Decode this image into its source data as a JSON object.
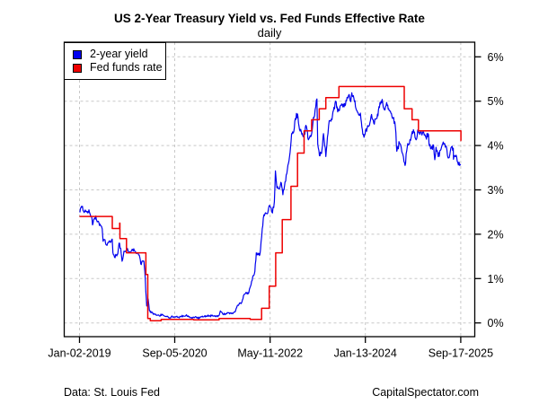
{
  "header": {
    "title": "US 2-Year Treasury Yield vs. Fed Funds Effective Rate",
    "subtitle": "daily"
  },
  "footer": {
    "source": "Data: St. Louis Fed",
    "site": "CapitalSpectator.com"
  },
  "legend": {
    "items": [
      {
        "label": "2-year yield",
        "color": "#0000ee"
      },
      {
        "label": "Fed funds rate",
        "color": "#ee0000"
      }
    ]
  },
  "chart_data": {
    "type": "line",
    "title": "US 2-Year Treasury Yield vs. Fed Funds Effective Rate",
    "subtitle": "daily",
    "grid": true,
    "grid_color": "#c8c8c8",
    "axis_color": "#000000",
    "legend_position": "top-left",
    "x_axis": {
      "xlim": [
        "2018-09-26",
        "2025-12-16"
      ],
      "ticks": [
        "2019-01-02",
        "2020-09-05",
        "2022-05-11",
        "2024-01-13",
        "2025-09-17"
      ],
      "tick_labels": [
        "Jan-02-2019",
        "Sep-05-2020",
        "May-11-2022",
        "Jan-13-2024",
        "Sep-17-2025"
      ],
      "data_end": "2025-09-19"
    },
    "y_axis": {
      "side": "right",
      "ylim": [
        -0.31,
        6.33
      ],
      "ticks": [
        0,
        1,
        2,
        3,
        4,
        5,
        6
      ],
      "tick_labels": [
        "0%",
        "1%",
        "2%",
        "3%",
        "4%",
        "5%",
        "6%"
      ],
      "unit": "percent"
    },
    "series": [
      {
        "name": "2-year yield",
        "color": "#0000ee",
        "style": "noisy-line",
        "points": [
          [
            "2019-01-02",
            2.5
          ],
          [
            "2019-01-08",
            2.58
          ],
          [
            "2019-01-18",
            2.61
          ],
          [
            "2019-01-28",
            2.52
          ],
          [
            "2019-02-05",
            2.52
          ],
          [
            "2019-02-15",
            2.52
          ],
          [
            "2019-02-25",
            2.48
          ],
          [
            "2019-03-04",
            2.55
          ],
          [
            "2019-03-12",
            2.45
          ],
          [
            "2019-03-20",
            2.4
          ],
          [
            "2019-03-27",
            2.21
          ],
          [
            "2019-04-05",
            2.34
          ],
          [
            "2019-04-17",
            2.41
          ],
          [
            "2019-04-26",
            2.28
          ],
          [
            "2019-05-07",
            2.26
          ],
          [
            "2019-05-17",
            2.2
          ],
          [
            "2019-05-28",
            2.12
          ],
          [
            "2019-06-03",
            1.84
          ],
          [
            "2019-06-12",
            1.88
          ],
          [
            "2019-06-21",
            1.77
          ],
          [
            "2019-07-01",
            1.79
          ],
          [
            "2019-07-12",
            1.85
          ],
          [
            "2019-07-24",
            1.83
          ],
          [
            "2019-07-31",
            1.89
          ],
          [
            "2019-08-05",
            1.58
          ],
          [
            "2019-08-15",
            1.48
          ],
          [
            "2019-08-27",
            1.53
          ],
          [
            "2019-09-05",
            1.55
          ],
          [
            "2019-09-13",
            1.8
          ],
          [
            "2019-09-24",
            1.68
          ],
          [
            "2019-10-03",
            1.39
          ],
          [
            "2019-10-15",
            1.62
          ],
          [
            "2019-10-25",
            1.62
          ],
          [
            "2019-11-06",
            1.68
          ],
          [
            "2019-11-18",
            1.6
          ],
          [
            "2019-11-29",
            1.61
          ],
          [
            "2019-12-10",
            1.65
          ],
          [
            "2019-12-20",
            1.63
          ],
          [
            "2019-12-31",
            1.58
          ],
          [
            "2020-01-09",
            1.58
          ],
          [
            "2020-01-21",
            1.53
          ],
          [
            "2020-01-31",
            1.33
          ],
          [
            "2020-02-10",
            1.39
          ],
          [
            "2020-02-20",
            1.39
          ],
          [
            "2020-02-26",
            1.16
          ],
          [
            "2020-03-03",
            0.71
          ],
          [
            "2020-03-09",
            0.38
          ],
          [
            "2020-03-18",
            0.54
          ],
          [
            "2020-03-26",
            0.28
          ],
          [
            "2020-04-08",
            0.23
          ],
          [
            "2020-04-24",
            0.21
          ],
          [
            "2020-05-11",
            0.17
          ],
          [
            "2020-05-29",
            0.16
          ],
          [
            "2020-06-15",
            0.19
          ],
          [
            "2020-06-30",
            0.16
          ],
          [
            "2020-07-15",
            0.15
          ],
          [
            "2020-07-31",
            0.11
          ],
          [
            "2020-08-14",
            0.14
          ],
          [
            "2020-08-31",
            0.14
          ],
          [
            "2020-09-15",
            0.14
          ],
          [
            "2020-09-30",
            0.13
          ],
          [
            "2020-10-15",
            0.14
          ],
          [
            "2020-10-30",
            0.16
          ],
          [
            "2020-11-16",
            0.17
          ],
          [
            "2020-11-30",
            0.16
          ],
          [
            "2020-12-15",
            0.12
          ],
          [
            "2020-12-31",
            0.13
          ],
          [
            "2021-01-15",
            0.14
          ],
          [
            "2021-01-29",
            0.11
          ],
          [
            "2021-02-12",
            0.11
          ],
          [
            "2021-02-26",
            0.14
          ],
          [
            "2021-03-15",
            0.15
          ],
          [
            "2021-03-31",
            0.16
          ],
          [
            "2021-04-15",
            0.16
          ],
          [
            "2021-04-30",
            0.16
          ],
          [
            "2021-05-14",
            0.15
          ],
          [
            "2021-05-28",
            0.14
          ],
          [
            "2021-06-15",
            0.16
          ],
          [
            "2021-06-25",
            0.27
          ],
          [
            "2021-07-09",
            0.21
          ],
          [
            "2021-07-23",
            0.2
          ],
          [
            "2021-08-06",
            0.21
          ],
          [
            "2021-08-20",
            0.23
          ],
          [
            "2021-09-03",
            0.21
          ],
          [
            "2021-09-17",
            0.23
          ],
          [
            "2021-10-01",
            0.27
          ],
          [
            "2021-10-15",
            0.4
          ],
          [
            "2021-10-26",
            0.45
          ],
          [
            "2021-11-08",
            0.45
          ],
          [
            "2021-11-24",
            0.64
          ],
          [
            "2021-12-08",
            0.69
          ],
          [
            "2021-12-22",
            0.66
          ],
          [
            "2022-01-05",
            0.83
          ],
          [
            "2022-01-19",
            1.04
          ],
          [
            "2022-02-02",
            1.16
          ],
          [
            "2022-02-11",
            1.58
          ],
          [
            "2022-02-24",
            1.54
          ],
          [
            "2022-03-07",
            1.55
          ],
          [
            "2022-03-21",
            2.12
          ],
          [
            "2022-04-01",
            2.44
          ],
          [
            "2022-04-14",
            2.47
          ],
          [
            "2022-04-26",
            2.48
          ],
          [
            "2022-05-04",
            2.64
          ],
          [
            "2022-05-11",
            2.63
          ],
          [
            "2022-05-26",
            2.48
          ],
          [
            "2022-06-07",
            2.73
          ],
          [
            "2022-06-14",
            3.43
          ],
          [
            "2022-06-24",
            3.04
          ],
          [
            "2022-07-06",
            3.02
          ],
          [
            "2022-07-19",
            3.17
          ],
          [
            "2022-08-01",
            2.89
          ],
          [
            "2022-08-15",
            3.18
          ],
          [
            "2022-08-30",
            3.46
          ],
          [
            "2022-09-13",
            3.75
          ],
          [
            "2022-09-26",
            4.27
          ],
          [
            "2022-10-10",
            4.31
          ],
          [
            "2022-10-20",
            4.61
          ],
          [
            "2022-11-03",
            4.71
          ],
          [
            "2022-11-16",
            4.36
          ],
          [
            "2022-12-01",
            4.25
          ],
          [
            "2022-12-14",
            4.21
          ],
          [
            "2022-12-30",
            4.43
          ],
          [
            "2023-01-12",
            4.13
          ],
          [
            "2023-01-27",
            4.2
          ],
          [
            "2023-02-10",
            4.51
          ],
          [
            "2023-02-24",
            4.81
          ],
          [
            "2023-03-08",
            5.05
          ],
          [
            "2023-03-13",
            4.03
          ],
          [
            "2023-03-24",
            3.77
          ],
          [
            "2023-04-06",
            3.82
          ],
          [
            "2023-04-19",
            4.27
          ],
          [
            "2023-05-04",
            3.75
          ],
          [
            "2023-05-18",
            4.27
          ],
          [
            "2023-05-26",
            4.56
          ],
          [
            "2023-06-09",
            4.6
          ],
          [
            "2023-06-22",
            4.79
          ],
          [
            "2023-07-06",
            5.0
          ],
          [
            "2023-07-19",
            4.76
          ],
          [
            "2023-08-03",
            4.88
          ],
          [
            "2023-08-17",
            4.93
          ],
          [
            "2023-08-29",
            4.87
          ],
          [
            "2023-09-14",
            5.01
          ],
          [
            "2023-09-27",
            5.13
          ],
          [
            "2023-10-11",
            4.99
          ],
          [
            "2023-10-18",
            5.19
          ],
          [
            "2023-10-31",
            5.07
          ],
          [
            "2023-11-14",
            4.83
          ],
          [
            "2023-11-28",
            4.73
          ],
          [
            "2023-12-12",
            4.73
          ],
          [
            "2023-12-28",
            4.25
          ],
          [
            "2024-01-11",
            4.25
          ],
          [
            "2024-01-24",
            4.38
          ],
          [
            "2024-02-08",
            4.45
          ],
          [
            "2024-02-22",
            4.7
          ],
          [
            "2024-03-07",
            4.5
          ],
          [
            "2024-03-21",
            4.6
          ],
          [
            "2024-04-03",
            4.67
          ],
          [
            "2024-04-16",
            4.97
          ],
          [
            "2024-04-30",
            5.04
          ],
          [
            "2024-05-14",
            4.81
          ],
          [
            "2024-05-29",
            4.97
          ],
          [
            "2024-06-11",
            4.83
          ],
          [
            "2024-06-25",
            4.73
          ],
          [
            "2024-07-09",
            4.62
          ],
          [
            "2024-07-24",
            4.42
          ],
          [
            "2024-08-02",
            3.87
          ],
          [
            "2024-08-19",
            4.06
          ],
          [
            "2024-09-03",
            3.86
          ],
          [
            "2024-09-24",
            3.55
          ],
          [
            "2024-10-08",
            3.96
          ],
          [
            "2024-10-22",
            4.03
          ],
          [
            "2024-11-06",
            4.26
          ],
          [
            "2024-11-20",
            4.3
          ],
          [
            "2024-12-04",
            4.13
          ],
          [
            "2024-12-18",
            4.35
          ],
          [
            "2025-01-07",
            4.29
          ],
          [
            "2025-01-22",
            4.29
          ],
          [
            "2025-02-05",
            4.19
          ],
          [
            "2025-02-19",
            4.27
          ],
          [
            "2025-02-28",
            3.99
          ],
          [
            "2025-03-11",
            3.94
          ],
          [
            "2025-03-26",
            4.01
          ],
          [
            "2025-04-03",
            3.68
          ],
          [
            "2025-04-11",
            3.96
          ],
          [
            "2025-04-25",
            3.75
          ],
          [
            "2025-05-09",
            3.89
          ],
          [
            "2025-05-21",
            4.02
          ],
          [
            "2025-06-06",
            4.04
          ],
          [
            "2025-06-20",
            3.9
          ],
          [
            "2025-07-01",
            3.72
          ],
          [
            "2025-07-16",
            3.95
          ],
          [
            "2025-07-31",
            3.94
          ],
          [
            "2025-08-01",
            3.69
          ],
          [
            "2025-08-15",
            3.75
          ],
          [
            "2025-08-29",
            3.62
          ],
          [
            "2025-09-10",
            3.55
          ],
          [
            "2025-09-17",
            3.56
          ]
        ]
      },
      {
        "name": "Fed funds rate",
        "color": "#ee0000",
        "style": "step",
        "points": [
          [
            "2019-01-02",
            2.4
          ],
          [
            "2019-08-01",
            2.13
          ],
          [
            "2019-09-17",
            2.25
          ],
          [
            "2019-09-19",
            1.9
          ],
          [
            "2019-10-31",
            1.58
          ],
          [
            "2020-03-04",
            1.09
          ],
          [
            "2020-03-16",
            0.1
          ],
          [
            "2020-04-01",
            0.05
          ],
          [
            "2020-06-10",
            0.08
          ],
          [
            "2021-01-04",
            0.07
          ],
          [
            "2021-06-17",
            0.1
          ],
          [
            "2022-01-03",
            0.08
          ],
          [
            "2022-03-17",
            0.33
          ],
          [
            "2022-05-05",
            0.83
          ],
          [
            "2022-06-16",
            1.58
          ],
          [
            "2022-07-28",
            2.33
          ],
          [
            "2022-09-22",
            3.08
          ],
          [
            "2022-11-03",
            3.83
          ],
          [
            "2022-12-15",
            4.33
          ],
          [
            "2023-02-02",
            4.58
          ],
          [
            "2023-03-23",
            4.83
          ],
          [
            "2023-05-04",
            5.08
          ],
          [
            "2023-07-27",
            5.33
          ],
          [
            "2024-09-19",
            4.83
          ],
          [
            "2024-11-08",
            4.58
          ],
          [
            "2024-12-19",
            4.33
          ],
          [
            "2025-09-18",
            4.11
          ]
        ]
      }
    ]
  }
}
